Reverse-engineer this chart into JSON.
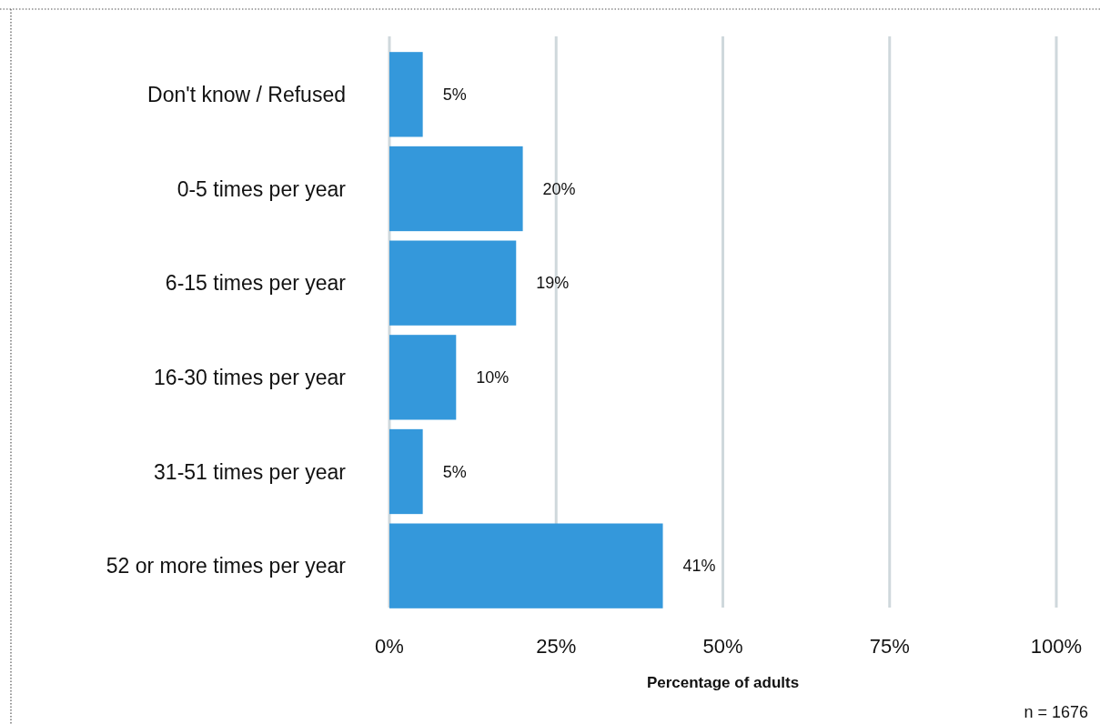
{
  "chart_data": {
    "type": "bar",
    "orientation": "horizontal",
    "xlabel": "Percentage of adults",
    "categories": [
      "Don't know / Refused",
      "0-5 times per year",
      "6-15 times per year",
      "16-30 times per year",
      "31-51 times per year",
      "52 or more times per year"
    ],
    "values": [
      5,
      20,
      19,
      10,
      5,
      41
    ],
    "value_labels": [
      "5%",
      "20%",
      "19%",
      "10%",
      "5%",
      "41%"
    ],
    "color": "#3498db",
    "xlim": [
      0,
      100
    ],
    "xticks": [
      {
        "value": 0,
        "label": "0%"
      },
      {
        "value": 25,
        "label": "25%"
      },
      {
        "value": 50,
        "label": "50%"
      },
      {
        "value": 75,
        "label": "75%"
      },
      {
        "value": 100,
        "label": "100%"
      }
    ],
    "grid": "x",
    "annotations": [
      "n = 1676"
    ]
  }
}
